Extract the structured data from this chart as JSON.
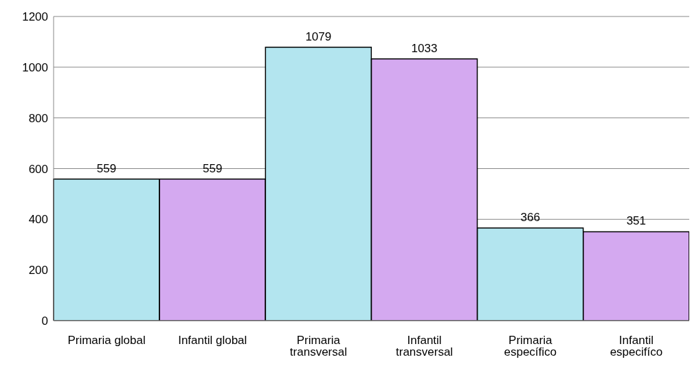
{
  "chart_data": {
    "type": "bar",
    "categories": [
      "Primaria global",
      "Infantil global",
      "Primaria transversal",
      "Infantil transversal",
      "Primaria específico",
      "Infantil especifíco"
    ],
    "values": [
      559,
      559,
      1079,
      1033,
      366,
      351
    ],
    "colors": [
      "#b3e5ef",
      "#d4a9f0",
      "#b3e5ef",
      "#d4a9f0",
      "#b3e5ef",
      "#d4a9f0"
    ],
    "ylim": [
      0,
      1200
    ],
    "yticks": [
      0,
      200,
      400,
      600,
      800,
      1000,
      1200
    ],
    "grid": "y",
    "data_labels": true
  }
}
